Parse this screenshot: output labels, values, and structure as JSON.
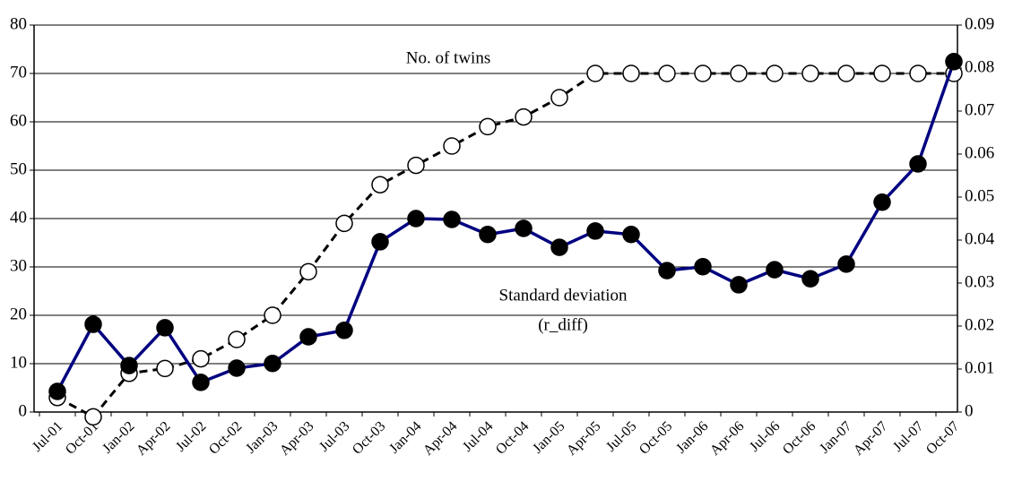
{
  "chart_data": {
    "type": "line",
    "categories": [
      "Jul-01",
      "Oct-01",
      "Jan-02",
      "Apr-02",
      "Jul-02",
      "Oct-02",
      "Jan-03",
      "Apr-03",
      "Jul-03",
      "Oct-03",
      "Jan-04",
      "Apr-04",
      "Jul-04",
      "Oct-04",
      "Jan-05",
      "Apr-05",
      "Jul-05",
      "Oct-05",
      "Jan-06",
      "Apr-06",
      "Jul-06",
      "Oct-06",
      "Jan-07",
      "Apr-07",
      "Jul-07",
      "Oct-07"
    ],
    "series": [
      {
        "color": "#000000",
        "marker": "open",
        "dashed": true,
        "values": [
          3,
          -1,
          8,
          9,
          11,
          15,
          20,
          29,
          39,
          47,
          51,
          55,
          59,
          61,
          65,
          70,
          70,
          70,
          70,
          70,
          70,
          70,
          70,
          70,
          70,
          70
        ]
      },
      {
        "color": "#000080",
        "marker": "filled",
        "dashed": false,
        "axis": "y2",
        "values": [
          0.0048,
          0.0204,
          0.0108,
          0.0196,
          0.0069,
          0.0102,
          0.0113,
          0.0175,
          0.019,
          0.0396,
          0.045,
          0.0448,
          0.0413,
          0.0427,
          0.0383,
          0.0421,
          0.0413,
          0.0329,
          0.0338,
          0.0296,
          0.0331,
          0.031,
          0.0344,
          0.0488,
          0.0577,
          0.0815
        ]
      }
    ],
    "annotations": [
      "No. of twins",
      "Standard deviation",
      "(r_diff)"
    ],
    "ylim": [
      0,
      80
    ],
    "yticks": [
      0,
      10,
      20,
      30,
      40,
      50,
      60,
      70,
      80
    ],
    "y2lim": [
      0,
      0.09
    ],
    "y2ticks": [
      0,
      0.01,
      0.02,
      0.03,
      0.04,
      0.05,
      0.06,
      0.07,
      0.08,
      0.09
    ],
    "grid": true
  }
}
